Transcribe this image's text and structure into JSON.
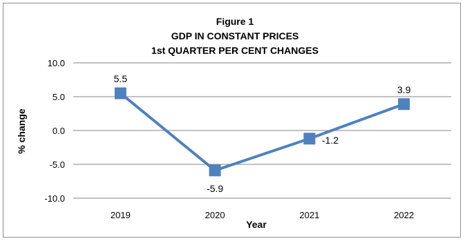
{
  "chart_data": {
    "type": "line",
    "title_lines": [
      "Figure 1",
      "GDP IN CONSTANT PRICES",
      "1st QUARTER PER CENT CHANGES"
    ],
    "xlabel": "Year",
    "ylabel": "% change",
    "categories": [
      "2019",
      "2020",
      "2021",
      "2022"
    ],
    "values": [
      5.5,
      -5.9,
      -1.2,
      3.9
    ],
    "data_labels": [
      "5.5",
      "-5.9",
      "-1.2",
      "3.9"
    ],
    "y_ticks": [
      "10.0",
      "5.0",
      "0.0",
      "-5.0",
      "-10.0"
    ],
    "ylim": [
      -10,
      10
    ],
    "grid": true,
    "legend": false,
    "series_color": "#4f81bd",
    "gridline_color": "#868686"
  }
}
